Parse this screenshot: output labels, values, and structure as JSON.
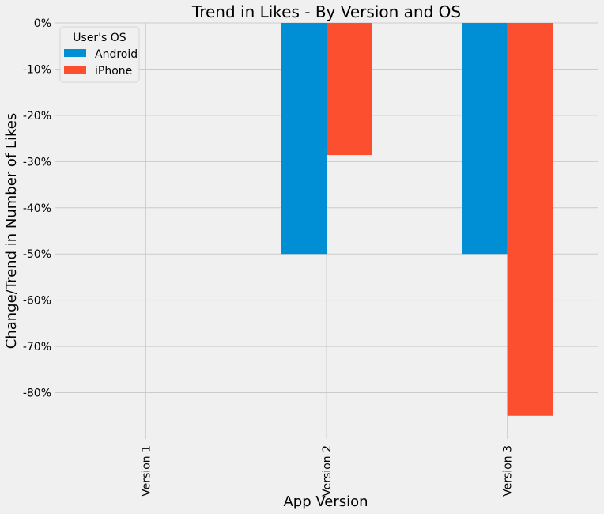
{
  "chart_data": {
    "type": "bar",
    "title": "Trend in Likes - By Version and OS",
    "xlabel": "App Version",
    "ylabel": "Change/Trend in Number of Likes",
    "categories": [
      "Version 1",
      "Version 2",
      "Version 3"
    ],
    "series": [
      {
        "name": "Android",
        "values": [
          0,
          -50,
          -50
        ],
        "color": "#008fd5"
      },
      {
        "name": "iPhone",
        "values": [
          0,
          -28.6,
          -85
        ],
        "color": "#fc4f30"
      }
    ],
    "ylim": [
      -90,
      0
    ],
    "yticks": [
      0,
      -10,
      -20,
      -30,
      -40,
      -50,
      -60,
      -70,
      -80
    ],
    "ytick_labels": [
      "0%",
      "-10%",
      "-20%",
      "-30%",
      "-40%",
      "-50%",
      "-60%",
      "-70%",
      "-80%"
    ],
    "legend_title": "User's OS",
    "legend_position": "top-left",
    "grid": true,
    "background": "#f0f0f0",
    "grid_color": "#cbcbcb"
  }
}
